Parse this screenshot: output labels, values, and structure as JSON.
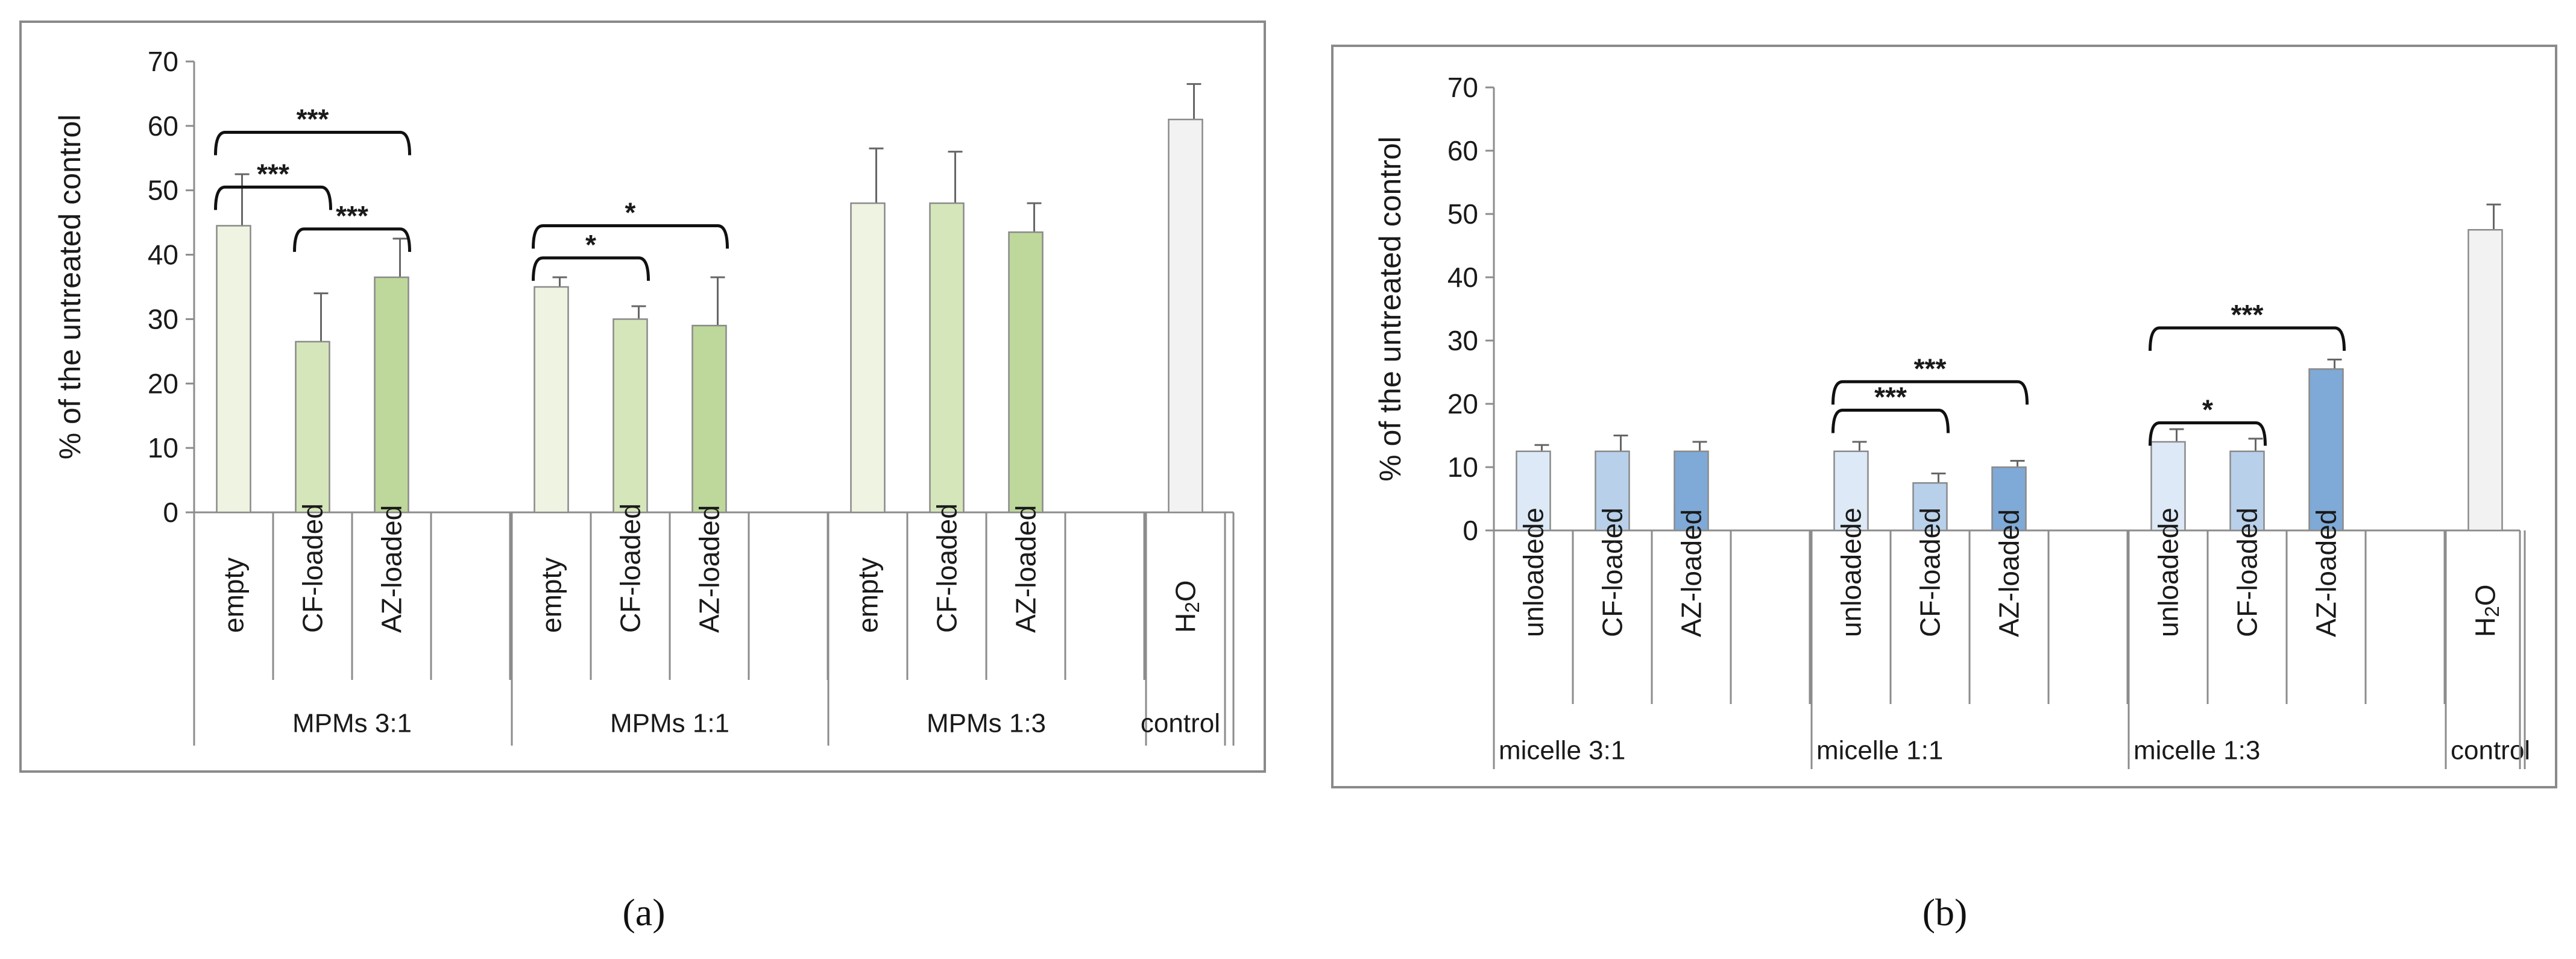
{
  "chart_data": [
    {
      "type": "bar",
      "panel_label": "(a)",
      "ylabel": "% of the untreated control",
      "ylim": [
        0,
        70
      ],
      "yticks": [
        0,
        10,
        20,
        30,
        40,
        50,
        60,
        70
      ],
      "grid": false,
      "colors": {
        "empty": "#eef3e2",
        "CF-loaded": "#d6e6bb",
        "AZ-loaded": "#bed79b",
        "H2O": "#f2f2f2"
      },
      "groups": [
        {
          "label": "MPMs 3:1",
          "bars": [
            {
              "label": "empty",
              "value": 44.5,
              "error": 8,
              "color_key": "empty"
            },
            {
              "label": "CF-loaded",
              "value": 26.5,
              "error": 7.5,
              "color_key": "CF-loaded"
            },
            {
              "label": "AZ-loaded",
              "value": 36.5,
              "error": 6,
              "color_key": "AZ-loaded"
            }
          ]
        },
        {
          "label": "MPMs 1:1",
          "bars": [
            {
              "label": "empty",
              "value": 35,
              "error": 1.5,
              "color_key": "empty"
            },
            {
              "label": "CF-loaded",
              "value": 30,
              "error": 2,
              "color_key": "CF-loaded"
            },
            {
              "label": "AZ-loaded",
              "value": 29,
              "error": 7.5,
              "color_key": "AZ-loaded"
            }
          ]
        },
        {
          "label": "MPMs 1:3",
          "bars": [
            {
              "label": "empty",
              "value": 48,
              "error": 8.5,
              "color_key": "empty"
            },
            {
              "label": "CF-loaded",
              "value": 48,
              "error": 8,
              "color_key": "CF-loaded"
            },
            {
              "label": "AZ-loaded",
              "value": 43.5,
              "error": 4.5,
              "color_key": "AZ-loaded"
            }
          ]
        },
        {
          "label": "control",
          "bars": [
            {
              "label": "H2O",
              "value": 61,
              "error": 5.5,
              "color_key": "H2O"
            }
          ]
        }
      ],
      "significance": [
        {
          "group": 0,
          "from": 0,
          "to": 1,
          "label": "***",
          "level": 50.5
        },
        {
          "group": 0,
          "from": 0,
          "to": 2,
          "label": "***",
          "level": 59
        },
        {
          "group": 0,
          "from": 1,
          "to": 2,
          "label": "***",
          "level": 44
        },
        {
          "group": 1,
          "from": 0,
          "to": 1,
          "label": "*",
          "level": 39.5
        },
        {
          "group": 1,
          "from": 0,
          "to": 2,
          "label": "*",
          "level": 44.5
        }
      ]
    },
    {
      "type": "bar",
      "panel_label": "(b)",
      "ylabel": "% of the untreated control",
      "ylim": [
        0,
        70
      ],
      "yticks": [
        0,
        10,
        20,
        30,
        40,
        50,
        60,
        70
      ],
      "grid": false,
      "colors": {
        "unloadede": "#dde9f6",
        "CF-loaded": "#b8d0ea",
        "AZ-loaded": "#7fa9d6",
        "H2O": "#f2f2f2"
      },
      "groups": [
        {
          "label": "micelle 3:1",
          "bars": [
            {
              "label": "unloadede",
              "value": 12.5,
              "error": 1,
              "color_key": "unloadede"
            },
            {
              "label": "CF-loaded",
              "value": 12.5,
              "error": 2.5,
              "color_key": "CF-loaded"
            },
            {
              "label": "AZ-loaded",
              "value": 12.5,
              "error": 1.5,
              "color_key": "AZ-loaded"
            }
          ]
        },
        {
          "label": "micelle 1:1",
          "bars": [
            {
              "label": "unloadede",
              "value": 12.5,
              "error": 1.5,
              "color_key": "unloadede"
            },
            {
              "label": "CF-loaded",
              "value": 7.5,
              "error": 1.5,
              "color_key": "CF-loaded"
            },
            {
              "label": "AZ-loaded",
              "value": 10,
              "error": 1,
              "color_key": "AZ-loaded"
            }
          ]
        },
        {
          "label": "micelle 1:3",
          "bars": [
            {
              "label": "unloadede",
              "value": 14,
              "error": 2,
              "color_key": "unloadede"
            },
            {
              "label": "CF-loaded",
              "value": 12.5,
              "error": 2,
              "color_key": "CF-loaded"
            },
            {
              "label": "AZ-loaded",
              "value": 25.5,
              "error": 1.5,
              "color_key": "AZ-loaded"
            }
          ]
        },
        {
          "label": "control",
          "bars": [
            {
              "label": "H2O",
              "value": 47.5,
              "error": 4,
              "color_key": "H2O"
            }
          ]
        }
      ],
      "significance": [
        {
          "group": 1,
          "from": 0,
          "to": 1,
          "label": "***",
          "level": 19
        },
        {
          "group": 1,
          "from": 0,
          "to": 2,
          "label": "***",
          "level": 23.5
        },
        {
          "group": 2,
          "from": 0,
          "to": 1,
          "label": "*",
          "level": 17
        },
        {
          "group": 2,
          "from": 0,
          "to": 2,
          "label": "***",
          "level": 32
        }
      ]
    }
  ]
}
